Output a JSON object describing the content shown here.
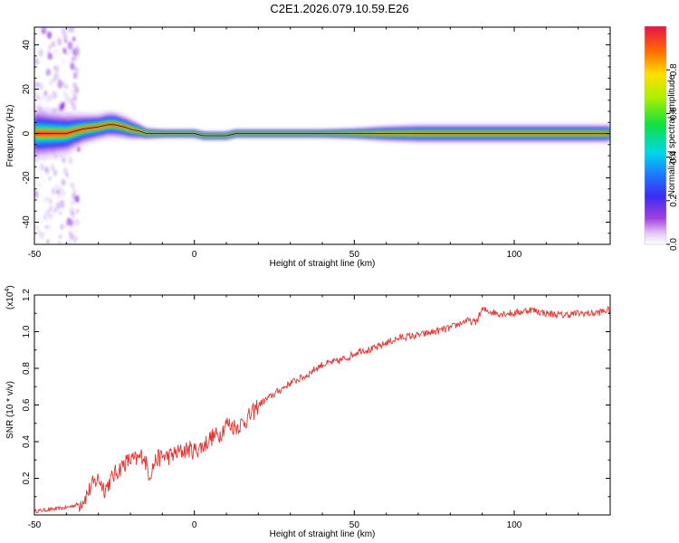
{
  "title": "C2E1.2026.079.10.59.E26",
  "colors": {
    "snr_line": "#e8322e",
    "ridge_line": "#000000",
    "frame": "#000000"
  },
  "chart_data": [
    {
      "type": "heatmap",
      "xlabel": "Height of straight line (km)",
      "ylabel": "Frequency (Hz)",
      "xlim": [
        -50,
        130
      ],
      "ylim": [
        -50,
        48
      ],
      "xticks": [
        "-50",
        "0",
        "50",
        "100"
      ],
      "yticks": [
        "-40",
        "-20",
        "0",
        "20",
        "40"
      ],
      "colorbar": {
        "label": "Normalized spectral amplitude",
        "range": [
          0,
          1
        ],
        "ticks": [
          "0.0",
          "0.2",
          "0.4",
          "0.6",
          "0.8"
        ],
        "colormap": "rainbow (white-violet-blue-cyan-green-yellow-red)"
      },
      "ridge": {
        "x": [
          -50,
          -45,
          -40,
          -35,
          -30,
          -27,
          -25,
          -22,
          -20,
          -17,
          -15,
          -12,
          -8,
          -4,
          0,
          3,
          5,
          8,
          10,
          13,
          15,
          20,
          30,
          40,
          50,
          60,
          70,
          80,
          90,
          100,
          110,
          120,
          130
        ],
        "y": [
          0,
          0,
          0,
          2,
          3,
          4,
          4,
          3,
          2,
          1,
          0,
          0,
          0,
          0,
          0,
          -1,
          -1,
          -1,
          -1,
          0,
          0,
          0,
          0,
          0,
          0,
          0,
          0,
          0,
          0,
          0,
          0,
          0,
          0
        ]
      },
      "ridge_halfwidth_hz": {
        "x": [
          -50,
          -40,
          -35,
          -30,
          -25,
          -20,
          -15,
          -10,
          0,
          10,
          20,
          40,
          50,
          60,
          70,
          80,
          90,
          100,
          110,
          120,
          130
        ],
        "values": [
          10,
          8,
          6,
          5,
          5,
          4,
          2,
          1.5,
          1.5,
          1.5,
          1.5,
          1.5,
          2,
          3,
          3.5,
          3.5,
          3.5,
          3.5,
          3.5,
          3.5,
          3.5
        ]
      },
      "noise_region_x": [
        -50,
        -38
      ]
    },
    {
      "type": "line",
      "xlabel": "Height of straight line (km)",
      "ylabel": "SNR (10 * v/v)",
      "y_multiplier": "(x10",
      "y_multiplier_exponent": "4",
      "xlim": [
        -50,
        130
      ],
      "ylim": [
        0,
        1.2
      ],
      "xticks": [
        "-50",
        "0",
        "50",
        "100"
      ],
      "yticks": [
        "0.2",
        "0.4",
        "0.6",
        "0.8",
        "1.0",
        "1.2"
      ],
      "series": [
        {
          "x": [
            -50,
            -45,
            -40,
            -36,
            -34,
            -32,
            -30,
            -28,
            -25,
            -22,
            -20,
            -18,
            -16,
            -14,
            -12,
            -10,
            -8,
            -5,
            -2,
            0,
            3,
            5,
            8,
            10,
            13,
            15,
            18,
            20,
            25,
            30,
            35,
            38,
            40,
            45,
            48,
            50,
            52,
            55,
            58,
            60,
            65,
            70,
            75,
            80,
            85,
            88,
            90,
            95,
            100,
            105,
            110,
            115,
            120,
            125,
            130
          ],
          "values": [
            0.02,
            0.03,
            0.04,
            0.06,
            0.1,
            0.16,
            0.2,
            0.14,
            0.22,
            0.28,
            0.3,
            0.3,
            0.33,
            0.22,
            0.3,
            0.32,
            0.32,
            0.34,
            0.36,
            0.35,
            0.38,
            0.42,
            0.44,
            0.5,
            0.48,
            0.5,
            0.55,
            0.6,
            0.66,
            0.72,
            0.76,
            0.8,
            0.82,
            0.84,
            0.86,
            0.88,
            0.9,
            0.9,
            0.92,
            0.94,
            0.97,
            0.98,
            1.0,
            1.02,
            1.06,
            1.05,
            1.12,
            1.1,
            1.1,
            1.12,
            1.1,
            1.09,
            1.1,
            1.1,
            1.12
          ]
        }
      ]
    }
  ]
}
